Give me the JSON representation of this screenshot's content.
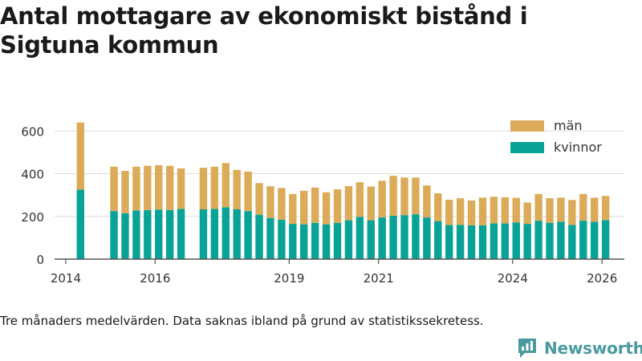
{
  "title": "Antal mottagare av ekonomiskt bistånd i Sigtuna kommun",
  "footnote": "Tre månaders medelvärden. Data saknas ibland på grund av statistikssekretess.",
  "brand": "Newsworthy",
  "colors": {
    "man": "#dcab59",
    "kvinnor": "#08a396",
    "axis": "#555555",
    "grid": "#dddddd",
    "brand": "#4a9a9d"
  },
  "chart_data": {
    "type": "bar",
    "stacked": true,
    "title": "Antal mottagare av ekonomiskt bistånd i Sigtuna kommun",
    "xlabel": "",
    "ylabel": "",
    "ylim": [
      0,
      650
    ],
    "yticks": [
      0,
      200,
      400,
      600
    ],
    "xlim": [
      2013.75,
      2026.5
    ],
    "xticks": [
      {
        "value": 2014,
        "label": "2014"
      },
      {
        "value": 2016,
        "label": "2016"
      },
      {
        "value": 2019,
        "label": "2019"
      },
      {
        "value": 2021,
        "label": "2021"
      },
      {
        "value": 2024,
        "label": "2024"
      },
      {
        "value": 2026,
        "label": "2026"
      }
    ],
    "legend_position": "top-right",
    "x": [
      2014.33,
      2015.08,
      2015.33,
      2015.58,
      2015.83,
      2016.08,
      2016.33,
      2016.58,
      2017.08,
      2017.33,
      2017.58,
      2017.83,
      2018.08,
      2018.33,
      2018.58,
      2018.83,
      2019.08,
      2019.33,
      2019.58,
      2019.83,
      2020.08,
      2020.33,
      2020.58,
      2020.83,
      2021.08,
      2021.33,
      2021.58,
      2021.83,
      2022.08,
      2022.33,
      2022.58,
      2022.83,
      2023.08,
      2023.33,
      2023.58,
      2023.83,
      2024.08,
      2024.33,
      2024.58,
      2024.83,
      2025.08,
      2025.33,
      2025.58,
      2025.83,
      2026.08
    ],
    "series": [
      {
        "name": "kvinnor",
        "values": [
          325,
          225,
          215,
          228,
          230,
          232,
          230,
          235,
          233,
          235,
          243,
          233,
          225,
          208,
          193,
          185,
          165,
          163,
          170,
          163,
          170,
          182,
          198,
          182,
          195,
          203,
          206,
          210,
          195,
          178,
          160,
          160,
          158,
          158,
          167,
          167,
          172,
          165,
          180,
          170,
          175,
          160,
          180,
          175,
          183
        ]
      },
      {
        "name": "män",
        "values": [
          315,
          208,
          198,
          205,
          207,
          208,
          207,
          190,
          195,
          198,
          207,
          185,
          185,
          148,
          148,
          148,
          140,
          157,
          165,
          150,
          157,
          160,
          162,
          158,
          172,
          187,
          176,
          172,
          150,
          130,
          118,
          125,
          117,
          130,
          125,
          123,
          115,
          100,
          125,
          115,
          113,
          117,
          125,
          113,
          113
        ]
      }
    ]
  }
}
